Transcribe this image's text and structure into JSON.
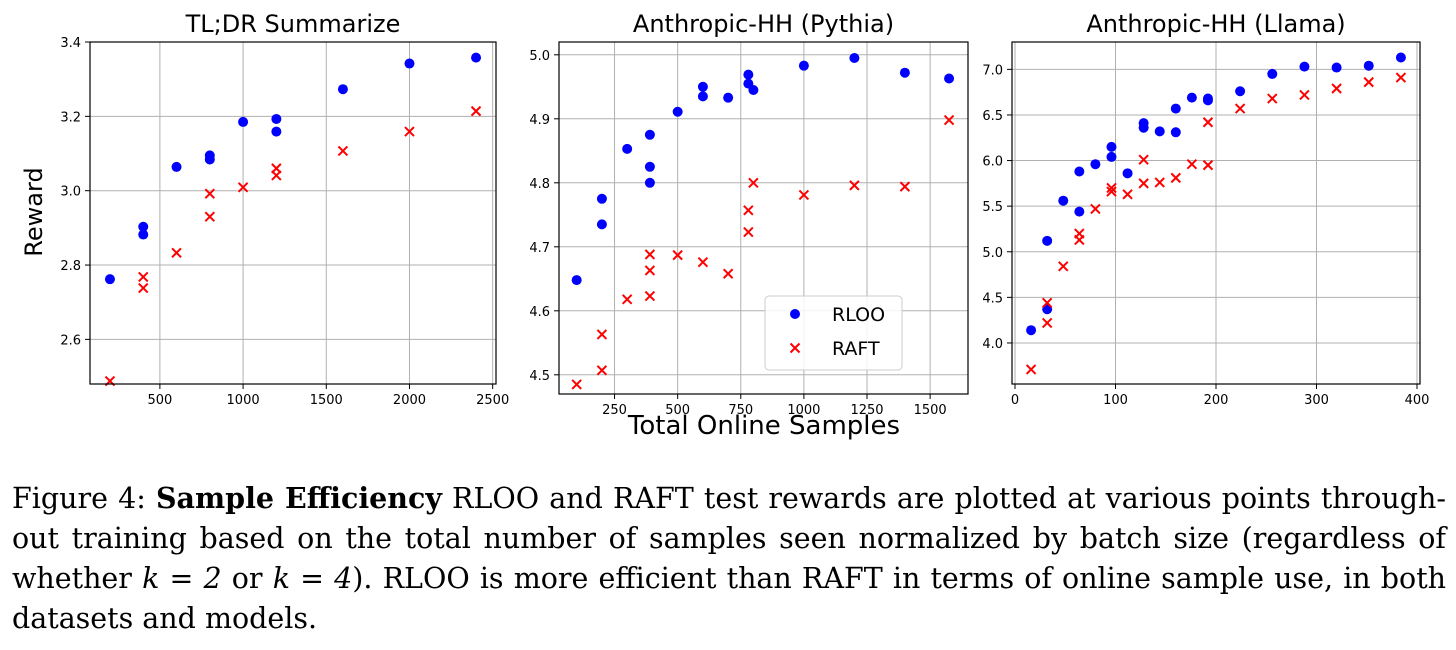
{
  "figure": {
    "shared_xlabel": "Total Online Samples",
    "shared_ylabel": "Reward",
    "legend": {
      "location": "lower-right of middle panel",
      "entries": [
        {
          "name": "RLOO",
          "marker": "circle",
          "color": "#0000ff"
        },
        {
          "name": "RAFT",
          "marker": "x",
          "color": "#ff0000"
        }
      ]
    }
  },
  "chart_data": [
    {
      "type": "scatter",
      "title": "TL;DR Summarize",
      "xlabel": "",
      "ylabel": "Reward",
      "xlim": [
        80,
        2520
      ],
      "ylim": [
        2.48,
        3.4
      ],
      "xticks": [
        500,
        1000,
        1500,
        2000,
        2500
      ],
      "xtick_labels": [
        "500",
        "1000",
        "1500",
        "2000",
        "2500"
      ],
      "yticks": [
        2.6,
        2.8,
        3.0,
        3.2,
        3.4
      ],
      "ytick_labels": [
        "2.6",
        "2.8",
        "3.0",
        "3.2",
        "3.4"
      ],
      "grid": true,
      "series": [
        {
          "name": "RLOO",
          "x": [
            200,
            400,
            400,
            600,
            800,
            800,
            1000,
            1200,
            1200,
            1600,
            2000,
            2400
          ],
          "y": [
            2.762,
            2.903,
            2.882,
            3.064,
            3.084,
            3.095,
            3.185,
            3.193,
            3.159,
            3.273,
            3.342,
            3.358
          ]
        },
        {
          "name": "RAFT",
          "x": [
            200,
            400,
            400,
            600,
            800,
            800,
            1000,
            1200,
            1200,
            1600,
            2000,
            2400
          ],
          "y": [
            2.488,
            2.768,
            2.738,
            2.833,
            2.992,
            2.93,
            3.009,
            3.06,
            3.041,
            3.107,
            3.159,
            3.214
          ]
        }
      ]
    },
    {
      "type": "scatter",
      "title": "Anthropic-HH (Pythia)",
      "xlabel": "Total Online Samples",
      "ylabel": "",
      "xlim": [
        30,
        1650
      ],
      "ylim": [
        4.47,
        5.02
      ],
      "xticks": [
        250,
        500,
        750,
        1000,
        1250,
        1500
      ],
      "xtick_labels": [
        "250",
        "500",
        "750",
        "1000",
        "1250",
        "1500"
      ],
      "yticks": [
        4.5,
        4.6,
        4.7,
        4.8,
        4.9,
        5.0
      ],
      "ytick_labels": [
        "4.5",
        "4.6",
        "4.7",
        "4.8",
        "4.9",
        "5.0"
      ],
      "grid": true,
      "legend": [
        "RLOO",
        "RAFT"
      ],
      "series": [
        {
          "name": "RLOO",
          "x": [
            100,
            200,
            200,
            300,
            390,
            390,
            390,
            500,
            600,
            600,
            700,
            780,
            780,
            800,
            1000,
            1200,
            1400,
            1575
          ],
          "y": [
            4.648,
            4.775,
            4.735,
            4.853,
            4.875,
            4.825,
            4.8,
            4.911,
            4.95,
            4.935,
            4.933,
            4.969,
            4.955,
            4.945,
            4.983,
            4.995,
            4.972,
            4.963
          ]
        },
        {
          "name": "RAFT",
          "x": [
            100,
            200,
            200,
            300,
            390,
            390,
            390,
            500,
            600,
            700,
            780,
            780,
            800,
            1000,
            1200,
            1400,
            1575
          ],
          "y": [
            4.485,
            4.563,
            4.507,
            4.618,
            4.688,
            4.663,
            4.623,
            4.687,
            4.676,
            4.658,
            4.757,
            4.723,
            4.8,
            4.781,
            4.796,
            4.794,
            4.898
          ]
        }
      ]
    },
    {
      "type": "scatter",
      "title": "Anthropic-HH (Llama)",
      "xlabel": "",
      "ylabel": "",
      "xlim": [
        -3,
        403
      ],
      "ylim": [
        3.55,
        7.3
      ],
      "xticks": [
        0,
        100,
        200,
        300,
        400
      ],
      "xtick_labels": [
        "0",
        "100",
        "200",
        "300",
        "400"
      ],
      "yticks": [
        4.0,
        4.5,
        5.0,
        5.5,
        6.0,
        6.5,
        7.0
      ],
      "ytick_labels": [
        "4.0",
        "4.5",
        "5.0",
        "5.5",
        "6.0",
        "6.5",
        "7.0"
      ],
      "grid": true,
      "series": [
        {
          "name": "RLOO",
          "x": [
            16,
            32,
            32,
            48,
            64,
            64,
            80,
            96,
            96,
            112,
            128,
            128,
            144,
            160,
            160,
            176,
            192,
            192,
            224,
            256,
            288,
            320,
            352,
            384
          ],
          "y": [
            4.14,
            5.12,
            4.37,
            5.56,
            5.88,
            5.44,
            5.96,
            6.15,
            6.04,
            5.86,
            6.41,
            6.36,
            6.32,
            6.57,
            6.31,
            6.69,
            6.68,
            6.66,
            6.76,
            6.95,
            7.03,
            7.02,
            7.04,
            7.13
          ]
        },
        {
          "name": "RAFT",
          "x": [
            16,
            32,
            32,
            48,
            64,
            64,
            80,
            96,
            96,
            112,
            128,
            128,
            144,
            160,
            176,
            192,
            192,
            224,
            256,
            288,
            320,
            352,
            384
          ],
          "y": [
            3.71,
            4.44,
            4.22,
            4.84,
            5.2,
            5.13,
            5.47,
            5.7,
            5.66,
            5.63,
            6.01,
            5.75,
            5.76,
            5.81,
            5.96,
            6.42,
            5.95,
            6.57,
            6.68,
            6.72,
            6.79,
            6.86,
            6.91
          ]
        }
      ]
    }
  ],
  "caption": {
    "label": "Figure 4:",
    "bold_title": "Sample Efficiency",
    "text_1": " RLOO and RAFT test rewards are plotted at various points through-out training based on the total number of samples seen normalized by batch size (regardless of whether ",
    "math_1": "k = 2",
    "text_2": " or ",
    "math_2": "k = 4",
    "text_3": "). RLOO is more efficient than RAFT in terms of online sample use, in both datasets and models."
  }
}
